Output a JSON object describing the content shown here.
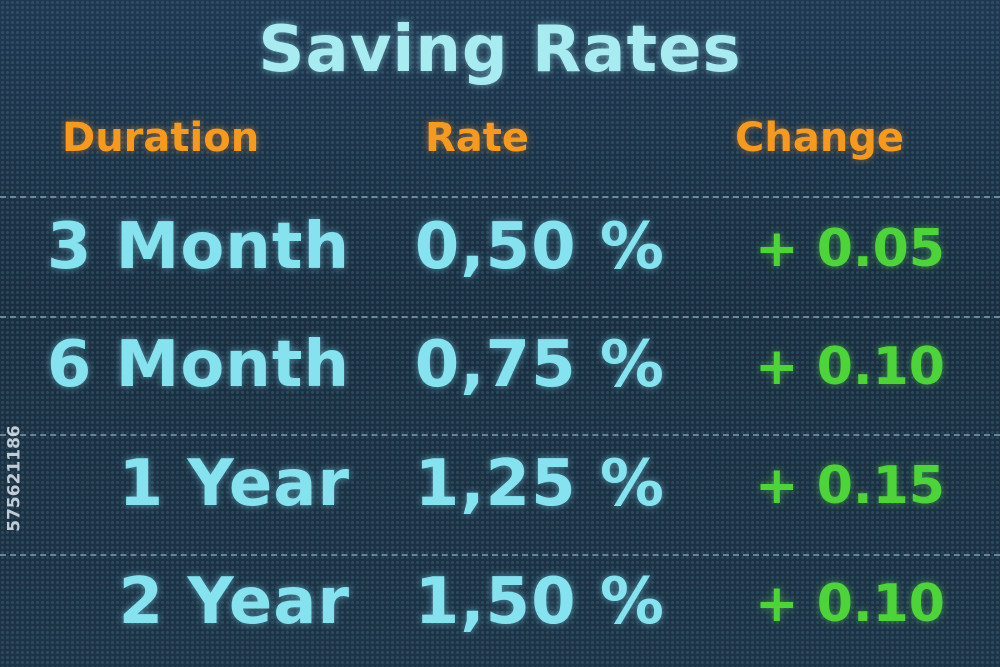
{
  "title": "Saving Rates",
  "table": {
    "header": [
      "Duration",
      "Rate",
      "Change"
    ],
    "rows": [
      [
        "3 Month",
        "0,50 %",
        "+ 0.05"
      ],
      [
        "6 Month",
        "0,75 %",
        "+ 0.10"
      ],
      [
        "1 Year",
        "1,25 %",
        "+ 0.15"
      ],
      [
        "2 Year",
        "1,50 %",
        "+ 0.10"
      ]
    ]
  },
  "watermark": "575621186"
}
